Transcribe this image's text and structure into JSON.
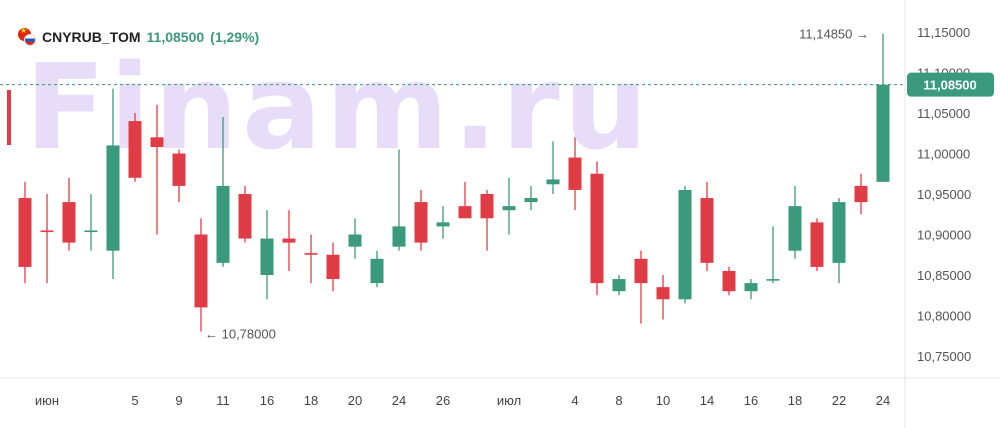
{
  "legend": {
    "ticker": "CNYRUB_TOM",
    "price": "11,08500",
    "change": "(1,29%)"
  },
  "watermark": "Finam.ru",
  "annotations": {
    "high_label": "11,14850",
    "low_label": "10,78000",
    "last_price": "11,08500"
  },
  "colors": {
    "up": "#3a9a7b",
    "down": "#e03c46",
    "price_line": "#3a9a7b",
    "axis_text": "#555555"
  },
  "chart_data": {
    "type": "candlestick",
    "ylim": [
      10.72,
      11.18
    ],
    "y_ticks": [
      "10,75000",
      "10,80000",
      "10,85000",
      "10,90000",
      "10,95000",
      "11,00000",
      "11,05000",
      "11,10000",
      "11,15000"
    ],
    "y_tick_values": [
      10.75,
      10.8,
      10.85,
      10.9,
      10.95,
      11.0,
      11.05,
      11.1,
      11.15
    ],
    "x_labels": [
      {
        "i": 1,
        "label": "июн"
      },
      {
        "i": 5,
        "label": "5"
      },
      {
        "i": 7,
        "label": "9"
      },
      {
        "i": 9,
        "label": "11"
      },
      {
        "i": 11,
        "label": "16"
      },
      {
        "i": 13,
        "label": "18"
      },
      {
        "i": 15,
        "label": "20"
      },
      {
        "i": 17,
        "label": "24"
      },
      {
        "i": 19,
        "label": "26"
      },
      {
        "i": 22,
        "label": "июл"
      },
      {
        "i": 25,
        "label": "4"
      },
      {
        "i": 27,
        "label": "8"
      },
      {
        "i": 29,
        "label": "10"
      },
      {
        "i": 31,
        "label": "14"
      },
      {
        "i": 33,
        "label": "16"
      },
      {
        "i": 35,
        "label": "18"
      },
      {
        "i": 37,
        "label": "22"
      },
      {
        "i": 39,
        "label": "24"
      }
    ],
    "candles": [
      {
        "o": 10.945,
        "h": 10.965,
        "l": 10.84,
        "c": 10.86
      },
      {
        "o": 10.905,
        "h": 10.95,
        "l": 10.84,
        "c": 10.903
      },
      {
        "o": 10.94,
        "h": 10.97,
        "l": 10.88,
        "c": 10.89
      },
      {
        "o": 10.903,
        "h": 10.95,
        "l": 10.88,
        "c": 10.905
      },
      {
        "o": 10.88,
        "h": 11.08,
        "l": 10.845,
        "c": 11.01
      },
      {
        "o": 11.04,
        "h": 11.05,
        "l": 10.965,
        "c": 10.97
      },
      {
        "o": 11.02,
        "h": 11.06,
        "l": 10.9,
        "c": 11.008
      },
      {
        "o": 11.0,
        "h": 11.005,
        "l": 10.94,
        "c": 10.96
      },
      {
        "o": 10.9,
        "h": 10.92,
        "l": 10.78,
        "c": 10.81
      },
      {
        "o": 10.865,
        "h": 11.045,
        "l": 10.86,
        "c": 10.96
      },
      {
        "o": 10.95,
        "h": 10.96,
        "l": 10.89,
        "c": 10.895
      },
      {
        "o": 10.85,
        "h": 10.93,
        "l": 10.82,
        "c": 10.895
      },
      {
        "o": 10.895,
        "h": 10.93,
        "l": 10.855,
        "c": 10.89
      },
      {
        "o": 10.877,
        "h": 10.9,
        "l": 10.84,
        "c": 10.875
      },
      {
        "o": 10.875,
        "h": 10.89,
        "l": 10.83,
        "c": 10.845
      },
      {
        "o": 10.885,
        "h": 10.92,
        "l": 10.87,
        "c": 10.9
      },
      {
        "o": 10.84,
        "h": 10.88,
        "l": 10.835,
        "c": 10.87
      },
      {
        "o": 10.885,
        "h": 11.005,
        "l": 10.88,
        "c": 10.91
      },
      {
        "o": 10.94,
        "h": 10.955,
        "l": 10.88,
        "c": 10.89
      },
      {
        "o": 10.91,
        "h": 10.935,
        "l": 10.895,
        "c": 10.915
      },
      {
        "o": 10.935,
        "h": 10.965,
        "l": 10.92,
        "c": 10.92
      },
      {
        "o": 10.95,
        "h": 10.955,
        "l": 10.88,
        "c": 10.92
      },
      {
        "o": 10.93,
        "h": 10.97,
        "l": 10.9,
        "c": 10.935
      },
      {
        "o": 10.94,
        "h": 10.96,
        "l": 10.93,
        "c": 10.945
      },
      {
        "o": 10.962,
        "h": 11.015,
        "l": 10.95,
        "c": 10.968
      },
      {
        "o": 10.995,
        "h": 11.02,
        "l": 10.93,
        "c": 10.955
      },
      {
        "o": 10.975,
        "h": 10.99,
        "l": 10.825,
        "c": 10.84
      },
      {
        "o": 10.83,
        "h": 10.85,
        "l": 10.825,
        "c": 10.845
      },
      {
        "o": 10.87,
        "h": 10.88,
        "l": 10.79,
        "c": 10.84
      },
      {
        "o": 10.835,
        "h": 10.85,
        "l": 10.795,
        "c": 10.82
      },
      {
        "o": 10.82,
        "h": 10.96,
        "l": 10.815,
        "c": 10.955
      },
      {
        "o": 10.945,
        "h": 10.965,
        "l": 10.855,
        "c": 10.865
      },
      {
        "o": 10.855,
        "h": 10.86,
        "l": 10.825,
        "c": 10.83
      },
      {
        "o": 10.83,
        "h": 10.845,
        "l": 10.82,
        "c": 10.84
      },
      {
        "o": 10.843,
        "h": 10.91,
        "l": 10.84,
        "c": 10.845
      },
      {
        "o": 10.88,
        "h": 10.96,
        "l": 10.87,
        "c": 10.935
      },
      {
        "o": 10.915,
        "h": 10.92,
        "l": 10.855,
        "c": 10.86
      },
      {
        "o": 10.865,
        "h": 10.945,
        "l": 10.84,
        "c": 10.94
      },
      {
        "o": 10.96,
        "h": 10.975,
        "l": 10.925,
        "c": 10.94
      },
      {
        "o": 10.965,
        "h": 11.148,
        "l": 10.965,
        "c": 11.085
      }
    ]
  }
}
